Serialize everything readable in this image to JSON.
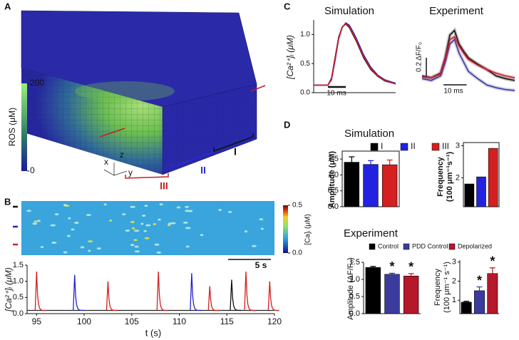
{
  "panel_labels": [
    "A",
    "B",
    "C",
    "D"
  ],
  "panel_a": {
    "colorbar": {
      "label": "ROS (μM)",
      "lim": [
        0,
        200
      ],
      "ticks": [
        0,
        200
      ]
    },
    "axes": [
      "x",
      "y",
      "z"
    ],
    "regions": [
      {
        "label": "I",
        "color": "#111111"
      },
      {
        "label": "II",
        "color": "#2a2adb"
      },
      {
        "label": "III",
        "color": "#c42020"
      }
    ]
  },
  "panel_b": {
    "colorbar": {
      "label": "[Ca]ᵢ (μM)",
      "lim": [
        0,
        0.5
      ],
      "ticks": [
        {
          "value": 0,
          "label": "0.0"
        },
        0.5
      ]
    },
    "scale_bar": "5 s",
    "trace": {
      "type": "line",
      "xlabel": "t (s)",
      "ylabel": "[Ca²⁺]ᵢ (μM)",
      "xlim": [
        94,
        120
      ],
      "xticks": [
        95,
        100,
        105,
        110,
        115,
        120
      ],
      "ylim": [
        0,
        1.5
      ],
      "yticks": [
        {
          "value": 0,
          "label": "0.0"
        },
        0.5,
        {
          "value": 1,
          "label": "1.0"
        },
        1.5
      ],
      "baseline": 0.1,
      "series": [
        {
          "color": "#111111",
          "t": [
            115.5
          ],
          "peaks": [
            1.05
          ]
        },
        {
          "color": "#2222d0",
          "t": [
            99,
            111.3
          ],
          "peaks": [
            1.2,
            1.25
          ]
        },
        {
          "color": "#d42020",
          "t": [
            95,
            102.5,
            107.8,
            113.2,
            117,
            119.5
          ],
          "peaks": [
            1.3,
            1.0,
            1.3,
            0.85,
            1.3,
            1.0
          ]
        }
      ]
    }
  },
  "panel_c": {
    "simulation": {
      "type": "line",
      "title": "Simulation",
      "ylabel": "[Ca²⁺]ᵢ (μM)",
      "xlim": [
        0,
        46
      ],
      "ylim": [
        0,
        1.25
      ],
      "yticks": [
        {
          "value": 0,
          "label": "0.0"
        },
        0.5,
        {
          "value": 1,
          "label": "1.0"
        }
      ],
      "scale_x": {
        "label": "10 ms",
        "length": 10
      },
      "t": [
        0,
        8,
        10,
        12,
        14,
        16,
        18,
        20,
        22,
        24,
        28,
        32,
        36,
        40,
        46
      ],
      "series": [
        {
          "color": "#111111",
          "values": [
            0.13,
            0.13,
            0.25,
            0.6,
            0.95,
            1.13,
            1.18,
            1.12,
            1.0,
            0.88,
            0.6,
            0.4,
            0.28,
            0.2,
            0.15
          ]
        },
        {
          "color": "#2222d0",
          "values": [
            0.13,
            0.13,
            0.22,
            0.55,
            0.92,
            1.12,
            1.2,
            1.16,
            1.05,
            0.93,
            0.65,
            0.44,
            0.3,
            0.22,
            0.16
          ]
        },
        {
          "color": "#d42020",
          "values": [
            0.13,
            0.13,
            0.24,
            0.58,
            0.93,
            1.12,
            1.19,
            1.14,
            1.02,
            0.9,
            0.62,
            0.42,
            0.29,
            0.21,
            0.15
          ]
        }
      ]
    },
    "experiment": {
      "type": "line",
      "title": "Experiment",
      "xlim": [
        0,
        40
      ],
      "ylim": [
        0.95,
        1.75
      ],
      "scale_x": {
        "label": "10 ms",
        "length": 10
      },
      "scale_y": {
        "label": "0.2 ΔF/F₀",
        "length": 0.2
      },
      "t": [
        0,
        4,
        8,
        10,
        12,
        14,
        16,
        18,
        20,
        24,
        28,
        32,
        36,
        40
      ],
      "series": [
        {
          "color": "#111111",
          "values": [
            1.15,
            1.13,
            1.18,
            1.35,
            1.6,
            1.65,
            1.5,
            1.42,
            1.35,
            1.28,
            1.22,
            1.15,
            1.12,
            1.1
          ]
        },
        {
          "color": "#3b3b9e",
          "values": [
            1.12,
            1.1,
            1.15,
            1.3,
            1.5,
            1.55,
            1.4,
            1.3,
            1.2,
            1.12,
            1.05,
            1.02,
            1.0,
            0.99
          ]
        },
        {
          "color": "#c42030",
          "values": [
            1.14,
            1.13,
            1.17,
            1.33,
            1.55,
            1.58,
            1.48,
            1.4,
            1.33,
            1.27,
            1.22,
            1.18,
            1.15,
            1.13
          ]
        }
      ]
    }
  },
  "panel_d": {
    "simulation": {
      "title": "Simulation",
      "legend": [
        "I",
        "II",
        "III"
      ],
      "colors": [
        "#000000",
        "#2222e0",
        "#d42020"
      ],
      "amplitude": {
        "type": "bar",
        "ylabel": [
          "Amplitude (μM)"
        ],
        "ylim": [
          0,
          1.75
        ],
        "yticks": [
          {
            "value": 0,
            "label": "0.0"
          },
          0.5,
          {
            "value": 1,
            "label": "1.0"
          },
          1.5
        ],
        "values": [
          1.4,
          1.33,
          1.32
        ],
        "errors": [
          0.17,
          0.12,
          0.15
        ]
      },
      "frequency": {
        "type": "bar",
        "ylabel": [
          "Frequency",
          "(100 μm⁻¹s⁻¹)"
        ],
        "ylim": [
          1.1,
          3.1
        ],
        "yticks": [
          2,
          3
        ],
        "values": [
          1.81,
          2.03,
          2.92
        ]
      }
    },
    "experiment": {
      "title": "Experiment",
      "legend": [
        "Control",
        "PDD Control",
        "Depolarized"
      ],
      "colors": [
        "#000000",
        "#3b3b9e",
        "#b5172b"
      ],
      "amplitude": {
        "type": "bar",
        "ylabel": [
          "Amplitude (ΔF/F₀)"
        ],
        "ylim": [
          0,
          1.5
        ],
        "yticks": [
          {
            "value": 0,
            "label": "0.0"
          },
          0.5,
          {
            "value": 1,
            "label": "1.0"
          },
          1.5
        ],
        "values": [
          1.35,
          1.15,
          1.1
        ],
        "errors": [
          0.03,
          0.03,
          0.07
        ],
        "annotations": [
          null,
          "*",
          "*"
        ]
      },
      "frequency": {
        "type": "bar",
        "ylabel": [
          "Frequency",
          "(100 μm⁻¹ s⁻¹)"
        ],
        "ylim": [
          0.3,
          3.1
        ],
        "yticks": [
          1,
          2,
          3
        ],
        "values": [
          0.9,
          1.5,
          2.4
        ],
        "errors": [
          0.05,
          0.2,
          0.3
        ],
        "annotations": [
          null,
          "*",
          "*"
        ]
      }
    }
  }
}
